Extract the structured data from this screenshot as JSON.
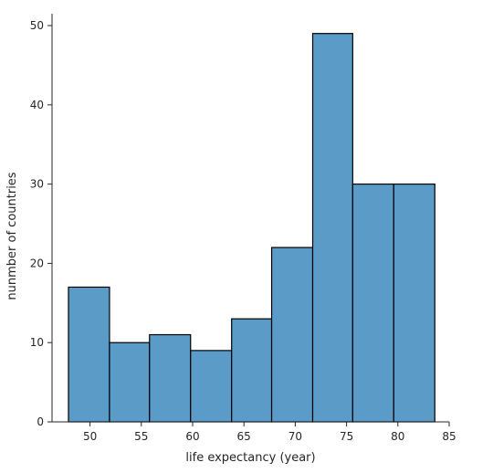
{
  "chart_data": {
    "type": "bar",
    "title": "",
    "xlabel": "life expectancy (year)",
    "ylabel": "nunmber of countries",
    "xlim": [
      46.3,
      85.0
    ],
    "ylim": [
      0,
      51.5
    ],
    "x_ticks": [
      "50",
      "55",
      "60",
      "65",
      "70",
      "75",
      "80",
      "85"
    ],
    "y_ticks": [
      "0",
      "10",
      "20",
      "30",
      "40",
      "50"
    ],
    "bins": [
      {
        "x0": 47.9,
        "x1": 51.9,
        "count": 17
      },
      {
        "x0": 51.9,
        "x1": 55.8,
        "count": 10
      },
      {
        "x0": 55.8,
        "x1": 59.8,
        "count": 11
      },
      {
        "x0": 59.8,
        "x1": 63.8,
        "count": 9
      },
      {
        "x0": 63.8,
        "x1": 67.7,
        "count": 13
      },
      {
        "x0": 67.7,
        "x1": 71.7,
        "count": 22
      },
      {
        "x0": 71.7,
        "x1": 75.6,
        "count": 49
      },
      {
        "x0": 75.6,
        "x1": 79.6,
        "count": 30
      },
      {
        "x0": 79.6,
        "x1": 83.6,
        "count": 30
      }
    ],
    "grid": false,
    "colors": {
      "bar_fill": "#5b9bc7",
      "bar_edge": "#000000",
      "axis": "#262626"
    }
  }
}
